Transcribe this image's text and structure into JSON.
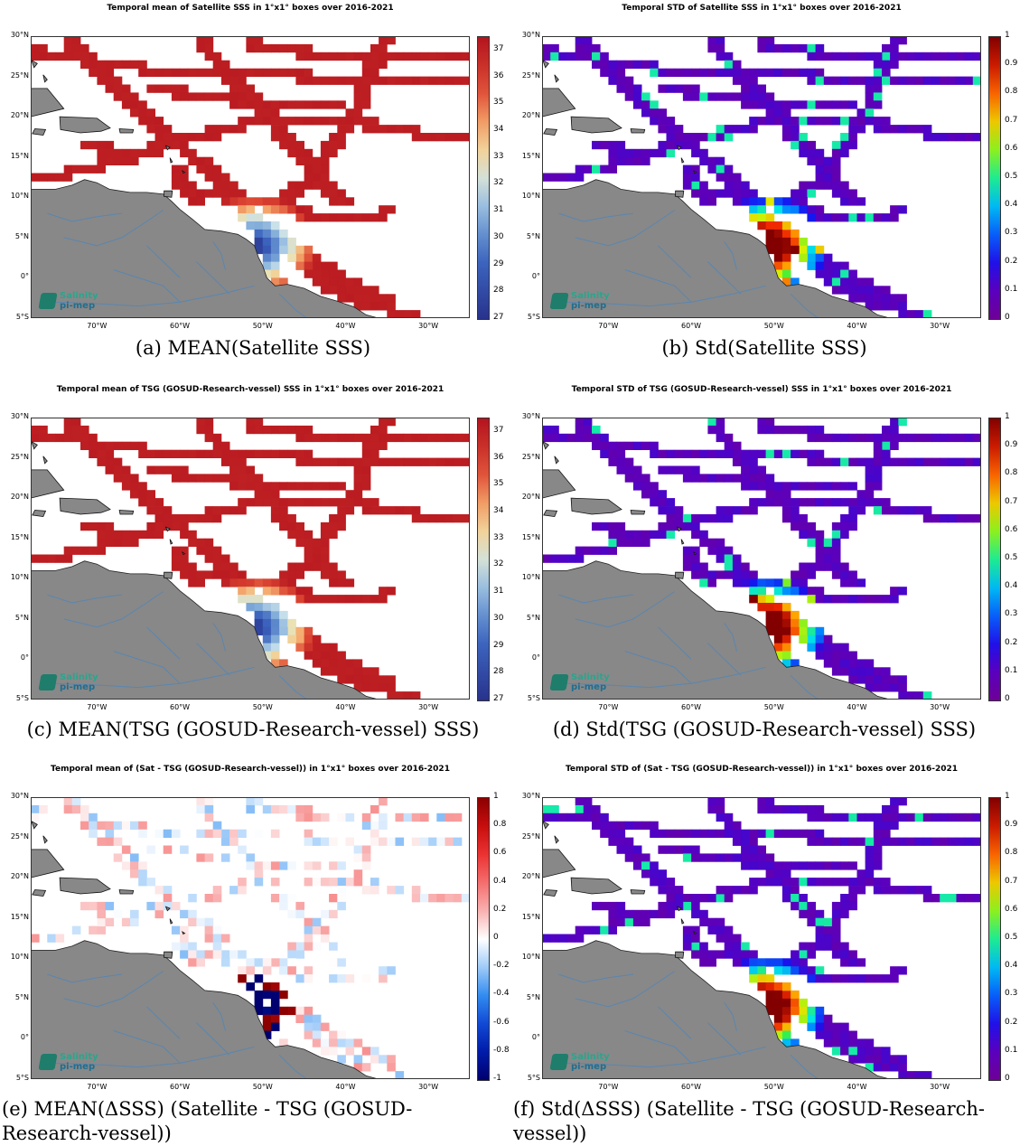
{
  "colors": {
    "land": "#888888",
    "river": "#5a86b0",
    "ocean": "#ffffff"
  },
  "axes": {
    "lat_labels": [
      "30°N",
      "25°N",
      "20°N",
      "15°N",
      "10°N",
      "5°N",
      "0°",
      "5°S"
    ],
    "lon_labels": [
      "70°W",
      "60°W",
      "50°W",
      "40°W",
      "30°W"
    ]
  },
  "logo": {
    "icon": "salinity-logo-icon",
    "line1": "Salinity",
    "line2": "pi-mep"
  },
  "panels": [
    {
      "id": "a",
      "title": "Temporal mean of Satellite SSS in 1°x1° boxes over 2016-2021",
      "caption": "(a) MEAN(Satellite SSS)",
      "colormap": "sss",
      "colorbar_ticks": [
        "37",
        "36",
        "35",
        "34",
        "33",
        "32",
        "31",
        "30",
        "29",
        "28",
        "27"
      ],
      "range": [
        27,
        37.5
      ]
    },
    {
      "id": "b",
      "title": "Temporal STD of Satellite SSS in 1°x1° boxes over 2016-2021",
      "caption": "(b) Std(Satellite SSS)",
      "colormap": "jet",
      "colorbar_ticks": [
        "1",
        "0.9",
        "0.8",
        "0.7",
        "0.6",
        "0.5",
        "0.4",
        "0.3",
        "0.2",
        "0.1",
        "0"
      ],
      "range": [
        0,
        1
      ]
    },
    {
      "id": "c",
      "title": "Temporal mean of TSG (GOSUD-Research-vessel) SSS in 1°x1° boxes over 2016-2021",
      "caption": "(c) MEAN(TSG (GOSUD-Research-vessel) SSS)",
      "colormap": "sss",
      "colorbar_ticks": [
        "37",
        "36",
        "35",
        "34",
        "33",
        "32",
        "31",
        "30",
        "29",
        "28",
        "27"
      ],
      "range": [
        27,
        37.5
      ]
    },
    {
      "id": "d",
      "title": "Temporal STD of TSG (GOSUD-Research-vessel) SSS in 1°x1° boxes over 2016-2021",
      "caption": "(d) Std(TSG (GOSUD-Research-vessel) SSS)",
      "colormap": "jet",
      "colorbar_ticks": [
        "1",
        "0.9",
        "0.8",
        "0.7",
        "0.6",
        "0.5",
        "0.4",
        "0.3",
        "0.2",
        "0.1",
        "0"
      ],
      "range": [
        0,
        1
      ]
    },
    {
      "id": "e",
      "title": "Temporal mean of (Sat - TSG (GOSUD-Research-vessel)) in 1°x1° boxes over 2016-2021",
      "caption": "(e) MEAN(ΔSSS) (Satellite - TSG (GOSUD-Research-vessel))",
      "colormap": "diverging",
      "colorbar_ticks": [
        "1",
        "0.8",
        "0.6",
        "0.4",
        "0.2",
        "0",
        "-0.2",
        "-0.4",
        "-0.6",
        "-0.8",
        "-1"
      ],
      "range": [
        -1,
        1
      ]
    },
    {
      "id": "f",
      "title": "Temporal STD of (Sat - TSG (GOSUD-Research-vessel)) in 1°x1° boxes over 2016-2021",
      "caption": "(f) Std(ΔSSS) (Satellite - TSG (GOSUD-Research-vessel))",
      "colormap": "jet",
      "colorbar_ticks": [
        "1",
        "0.9",
        "0.8",
        "0.7",
        "0.6",
        "0.5",
        "0.4",
        "0.3",
        "0.2",
        "0.1",
        "0"
      ],
      "range": [
        0,
        1
      ]
    }
  ]
}
